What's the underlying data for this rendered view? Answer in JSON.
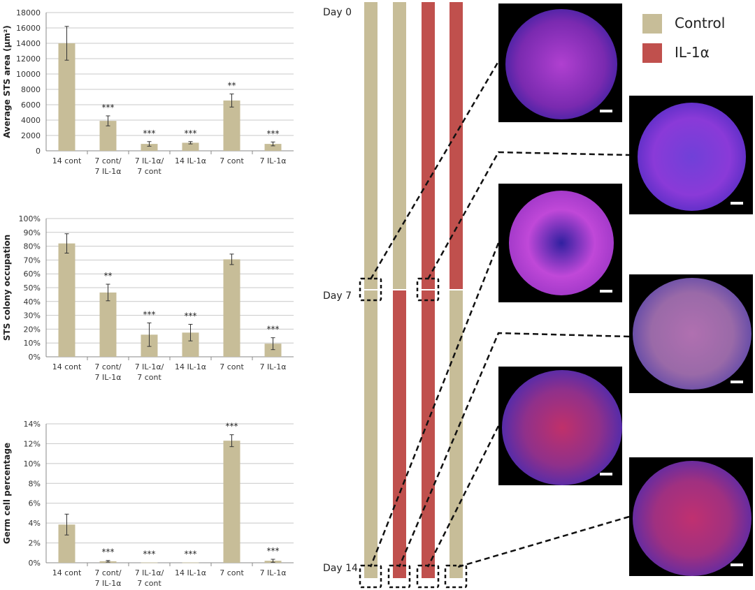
{
  "colors": {
    "control": "#c7bd98",
    "il1a": "#c0504d",
    "axis": "#888888",
    "grid": "#c8c8c8"
  },
  "legend": [
    {
      "label": "Control",
      "color": "#c7bd98"
    },
    {
      "label": "IL-1α",
      "color": "#c0504d"
    }
  ],
  "timeline": {
    "days": [
      "Day 0",
      "Day 7",
      "Day 14"
    ],
    "bars": [
      {
        "first_half": "control",
        "second_half": "control"
      },
      {
        "first_half": "control",
        "second_half": "il1a"
      },
      {
        "first_half": "il1a",
        "second_half": "il1a"
      },
      {
        "first_half": "il1a",
        "second_half": "control"
      }
    ]
  },
  "chart_data": [
    {
      "type": "bar",
      "ylabel": "Average STS area (µm²)",
      "ylim": [
        0,
        18000
      ],
      "yticks": [
        0,
        2000,
        4000,
        6000,
        8000,
        10000,
        12000,
        14000,
        16000,
        18000
      ],
      "ytick_labels": [
        "0",
        "2000",
        "4000",
        "6000",
        "8000",
        "10000",
        "12000",
        "14000",
        "16000",
        "18000"
      ],
      "grid": true,
      "categories": [
        [
          "14 cont"
        ],
        [
          "7 cont/",
          "7 IL-1α"
        ],
        [
          "7 IL-1α/",
          "7 cont"
        ],
        [
          "14 IL-1α"
        ],
        [
          "7 cont"
        ],
        [
          "7 IL-1α"
        ]
      ],
      "values": [
        14000,
        3900,
        900,
        1050,
        6550,
        900
      ],
      "errors": [
        2200,
        650,
        300,
        150,
        850,
        250
      ],
      "significance": [
        "",
        "***",
        "***",
        "***",
        "**",
        "***"
      ]
    },
    {
      "type": "bar",
      "ylabel": "STS colony occupation",
      "ylim": [
        0,
        100
      ],
      "yticks": [
        0,
        10,
        20,
        30,
        40,
        50,
        60,
        70,
        80,
        90,
        100
      ],
      "ytick_labels": [
        "0%",
        "10%",
        "20%",
        "30%",
        "40%",
        "50%",
        "60%",
        "70%",
        "80%",
        "90%",
        "100%"
      ],
      "grid": true,
      "categories": [
        [
          "14 cont"
        ],
        [
          "7 cont/",
          "7 IL-1α"
        ],
        [
          "7 IL-1α/",
          "7 cont"
        ],
        [
          "14 IL-1α"
        ],
        [
          "7 cont"
        ],
        [
          "7 IL-1α"
        ]
      ],
      "values": [
        82,
        46.5,
        16,
        17.5,
        70.5,
        9.5
      ],
      "errors": [
        7,
        6,
        8.5,
        6,
        3.8,
        4.3
      ],
      "significance": [
        "",
        "**",
        "***",
        "***",
        "",
        "***"
      ]
    },
    {
      "type": "bar",
      "ylabel": "Germ cell percentage",
      "ylim": [
        0,
        14
      ],
      "yticks": [
        0,
        2,
        4,
        6,
        8,
        10,
        12,
        14
      ],
      "ytick_labels": [
        "0%",
        "2%",
        "4%",
        "6%",
        "8%",
        "10%",
        "12%",
        "14%"
      ],
      "grid": true,
      "categories": [
        [
          "14 cont"
        ],
        [
          "7 cont/",
          "7 IL-1α"
        ],
        [
          "7 IL-1α/",
          "7 cont"
        ],
        [
          "14 IL-1α"
        ],
        [
          "7 cont"
        ],
        [
          "7 IL-1α"
        ]
      ],
      "values": [
        3.85,
        0.15,
        0.03,
        0.03,
        12.3,
        0.2
      ],
      "errors": [
        1.05,
        0.08,
        0,
        0,
        0.6,
        0.15
      ],
      "significance": [
        "",
        "***",
        "***",
        "***",
        "***",
        "***"
      ]
    }
  ]
}
